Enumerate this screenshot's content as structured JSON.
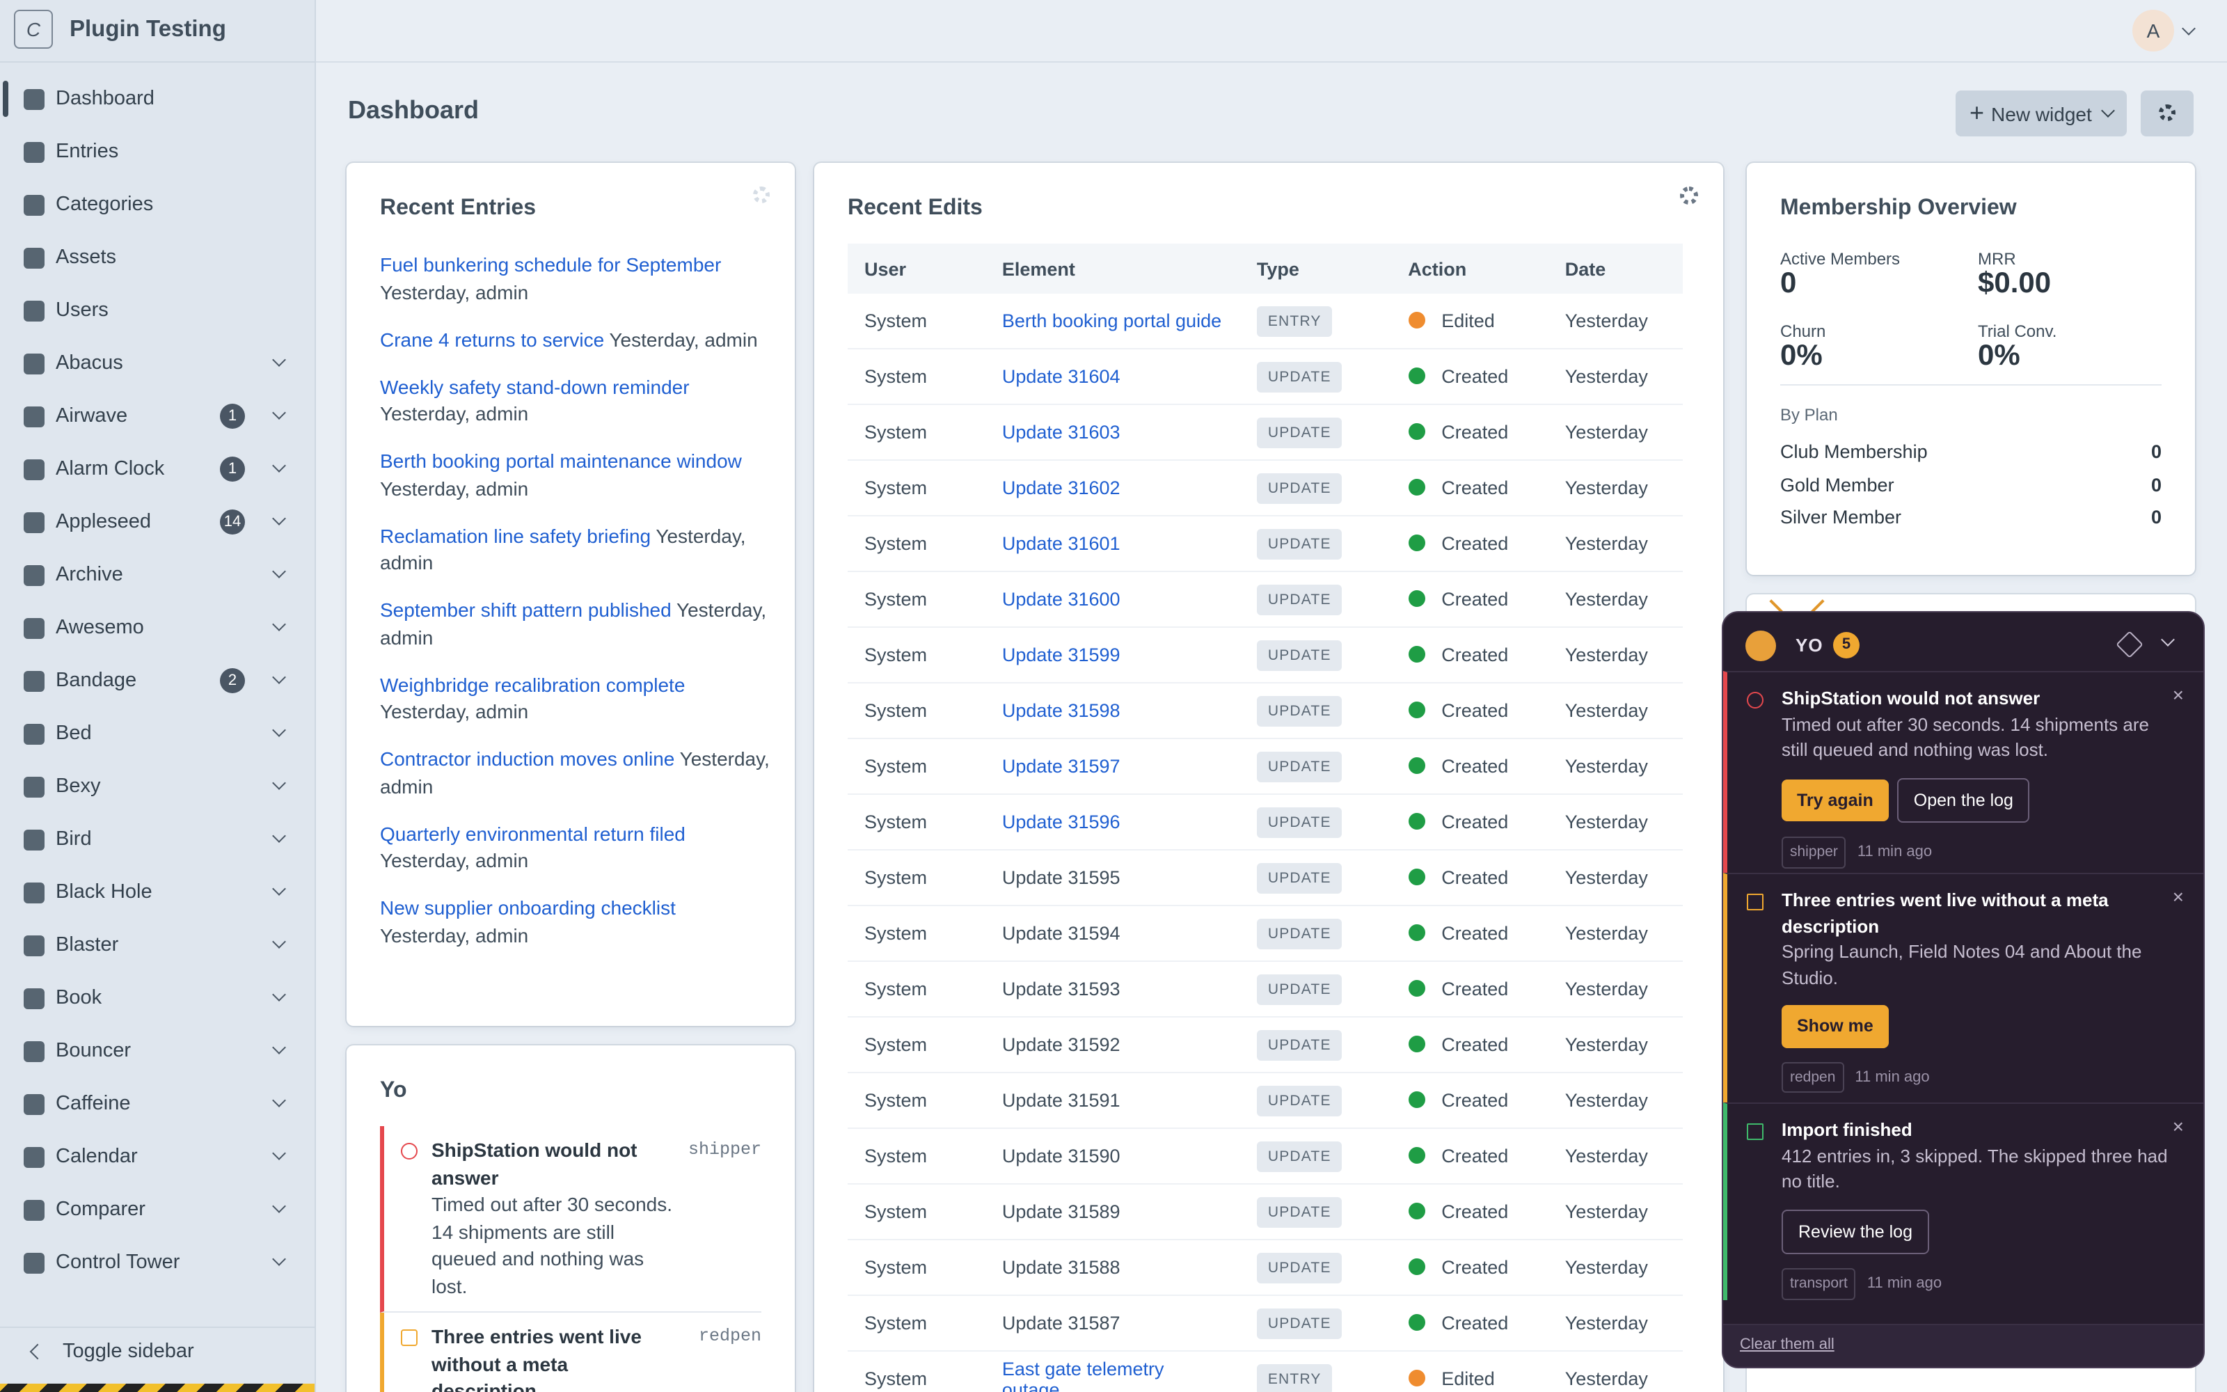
{
  "header": {
    "logo_letter": "C",
    "site_name": "Plugin Testing",
    "avatar": "A"
  },
  "sidebar": {
    "items": [
      {
        "label": "Dashboard",
        "active": true
      },
      {
        "label": "Entries"
      },
      {
        "label": "Categories"
      },
      {
        "label": "Assets"
      },
      {
        "label": "Users"
      },
      {
        "label": "Abacus",
        "expandable": true
      },
      {
        "label": "Airwave",
        "badge": 1,
        "expandable": true
      },
      {
        "label": "Alarm Clock",
        "badge": 1,
        "expandable": true
      },
      {
        "label": "Appleseed",
        "badge": 14,
        "expandable": true
      },
      {
        "label": "Archive",
        "expandable": true
      },
      {
        "label": "Awesemo",
        "expandable": true
      },
      {
        "label": "Bandage",
        "badge": 2,
        "expandable": true
      },
      {
        "label": "Bed",
        "expandable": true
      },
      {
        "label": "Bexy",
        "expandable": true
      },
      {
        "label": "Bird",
        "expandable": true
      },
      {
        "label": "Black Hole",
        "expandable": true
      },
      {
        "label": "Blaster",
        "expandable": true
      },
      {
        "label": "Book",
        "expandable": true
      },
      {
        "label": "Bouncer",
        "expandable": true
      },
      {
        "label": "Caffeine",
        "expandable": true
      },
      {
        "label": "Calendar",
        "expandable": true
      },
      {
        "label": "Comparer",
        "expandable": true
      },
      {
        "label": "Control Tower",
        "expandable": true
      }
    ],
    "toggle": "Toggle sidebar"
  },
  "page_title": "Dashboard",
  "actions": {
    "new_widget": "New widget"
  },
  "recent_entries": {
    "title": "Recent Entries",
    "items": [
      {
        "title": "Fuel bunkering schedule for September",
        "meta": "Yesterday, admin"
      },
      {
        "title": "Crane 4 returns to service",
        "meta": "Yesterday, admin"
      },
      {
        "title": "Weekly safety stand-down reminder",
        "meta": "Yesterday, admin"
      },
      {
        "title": "Berth booking portal maintenance window",
        "meta": "Yesterday, admin"
      },
      {
        "title": "Reclamation line safety briefing",
        "meta": "Yesterday, admin"
      },
      {
        "title": "September shift pattern published",
        "meta": "Yesterday, admin"
      },
      {
        "title": "Weighbridge recalibration complete",
        "meta": "Yesterday, admin"
      },
      {
        "title": "Contractor induction moves online",
        "meta": "Yesterday, admin"
      },
      {
        "title": "Quarterly environmental return filed",
        "meta": "Yesterday, admin"
      },
      {
        "title": "New supplier onboarding checklist",
        "meta": "Yesterday, admin"
      }
    ]
  },
  "recent_edits": {
    "title": "Recent Edits",
    "columns": [
      "User",
      "Element",
      "Type",
      "Action",
      "Date"
    ],
    "rows": [
      {
        "user": "System",
        "element": "Berth booking portal guide",
        "link": true,
        "type": "ENTRY",
        "action": "Edited",
        "date": "Yesterday"
      },
      {
        "user": "System",
        "element": "Update 31604",
        "link": true,
        "type": "UPDATE",
        "action": "Created",
        "date": "Yesterday"
      },
      {
        "user": "System",
        "element": "Update 31603",
        "link": true,
        "type": "UPDATE",
        "action": "Created",
        "date": "Yesterday"
      },
      {
        "user": "System",
        "element": "Update 31602",
        "link": true,
        "type": "UPDATE",
        "action": "Created",
        "date": "Yesterday"
      },
      {
        "user": "System",
        "element": "Update 31601",
        "link": true,
        "type": "UPDATE",
        "action": "Created",
        "date": "Yesterday"
      },
      {
        "user": "System",
        "element": "Update 31600",
        "link": true,
        "type": "UPDATE",
        "action": "Created",
        "date": "Yesterday"
      },
      {
        "user": "System",
        "element": "Update 31599",
        "link": true,
        "type": "UPDATE",
        "action": "Created",
        "date": "Yesterday"
      },
      {
        "user": "System",
        "element": "Update 31598",
        "link": true,
        "type": "UPDATE",
        "action": "Created",
        "date": "Yesterday"
      },
      {
        "user": "System",
        "element": "Update 31597",
        "link": true,
        "type": "UPDATE",
        "action": "Created",
        "date": "Yesterday"
      },
      {
        "user": "System",
        "element": "Update 31596",
        "link": true,
        "type": "UPDATE",
        "action": "Created",
        "date": "Yesterday"
      },
      {
        "user": "System",
        "element": "Update 31595",
        "link": false,
        "type": "UPDATE",
        "action": "Created",
        "date": "Yesterday"
      },
      {
        "user": "System",
        "element": "Update 31594",
        "link": false,
        "type": "UPDATE",
        "action": "Created",
        "date": "Yesterday"
      },
      {
        "user": "System",
        "element": "Update 31593",
        "link": false,
        "type": "UPDATE",
        "action": "Created",
        "date": "Yesterday"
      },
      {
        "user": "System",
        "element": "Update 31592",
        "link": false,
        "type": "UPDATE",
        "action": "Created",
        "date": "Yesterday"
      },
      {
        "user": "System",
        "element": "Update 31591",
        "link": false,
        "type": "UPDATE",
        "action": "Created",
        "date": "Yesterday"
      },
      {
        "user": "System",
        "element": "Update 31590",
        "link": false,
        "type": "UPDATE",
        "action": "Created",
        "date": "Yesterday"
      },
      {
        "user": "System",
        "element": "Update 31589",
        "link": false,
        "type": "UPDATE",
        "action": "Created",
        "date": "Yesterday"
      },
      {
        "user": "System",
        "element": "Update 31588",
        "link": false,
        "type": "UPDATE",
        "action": "Created",
        "date": "Yesterday"
      },
      {
        "user": "System",
        "element": "Update 31587",
        "link": false,
        "type": "UPDATE",
        "action": "Created",
        "date": "Yesterday"
      },
      {
        "user": "System",
        "element": "East gate telemetry outage",
        "link": true,
        "type": "ENTRY",
        "action": "Edited",
        "date": "Yesterday"
      }
    ]
  },
  "membership": {
    "title": "Membership Overview",
    "stats": [
      {
        "label": "Active Members",
        "value": "0"
      },
      {
        "label": "MRR",
        "value": "$0.00"
      },
      {
        "label": "Churn",
        "value": "0%"
      },
      {
        "label": "Trial Conv.",
        "value": "0%"
      }
    ],
    "by_plan": "By Plan",
    "plans": [
      {
        "name": "Club Membership",
        "count": 0
      },
      {
        "name": "Gold Member",
        "count": 0
      },
      {
        "name": "Silver Member",
        "count": 0
      }
    ]
  },
  "yo_widget": {
    "title": "Yo",
    "items": [
      {
        "level": "error",
        "title": "ShipStation would not answer",
        "body": "Timed out after 30 seconds. 14 shipments are still queued and nothing was lost.",
        "source": "shipper"
      },
      {
        "level": "warning",
        "title": "Three entries went live without a meta description",
        "source": "redpen"
      }
    ]
  },
  "yo_panel": {
    "title": "YO",
    "count": 5,
    "notifications": [
      {
        "level": "error",
        "title": "ShipStation would not answer",
        "body": "Timed out after 30 seconds. 14 shipments are still queued and nothing was lost.",
        "buttons": [
          {
            "label": "Try again",
            "primary": true
          },
          {
            "label": "Open the log",
            "primary": false
          }
        ],
        "source": "shipper",
        "time": "11 min ago"
      },
      {
        "level": "warning",
        "title": "Three entries went live without a meta description",
        "body": "Spring Launch, Field Notes 04 and About the Studio.",
        "buttons": [
          {
            "label": "Show me",
            "primary": true
          }
        ],
        "source": "redpen",
        "time": "11 min ago"
      },
      {
        "level": "success",
        "title": "Import finished",
        "body": "412 entries in, 3 skipped. The skipped three had no title.",
        "buttons": [
          {
            "label": "Review the log",
            "primary": false
          }
        ],
        "source": "transport",
        "time": "11 min ago"
      }
    ],
    "clear": "Clear them all"
  }
}
